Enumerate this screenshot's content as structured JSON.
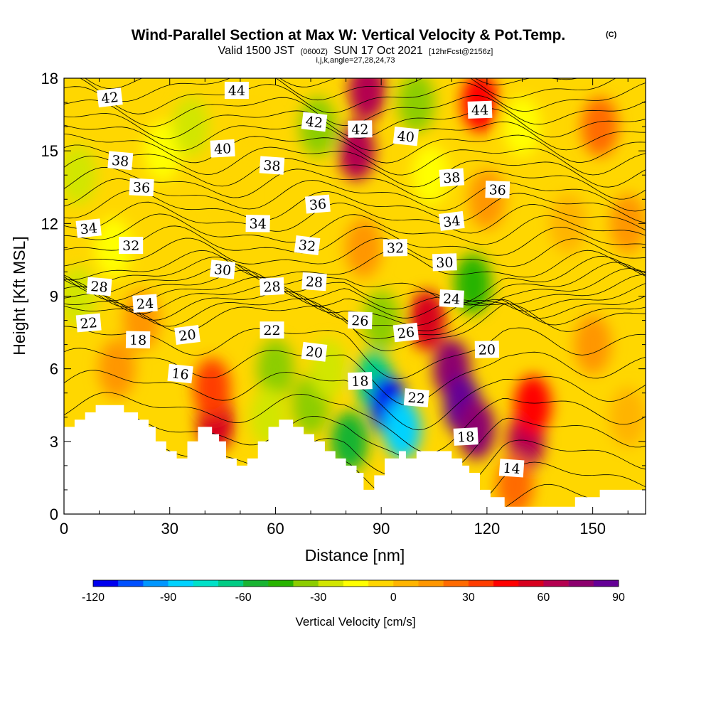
{
  "title": {
    "main": "Wind-Parallel Section at Max W: Vertical Velocity & Pot.Temp.",
    "copyright": "(C)",
    "sub_a": "Valid 1500 JST",
    "sub_zulu": "(0600Z)",
    "sub_b": "SUN 17 Oct 2021",
    "sub_fcst": "[12hrFcst@2156z]",
    "ijk": "i,j,k,angle=27,28,24,73"
  },
  "chart_data": {
    "type": "heatmap",
    "xlabel": "Distance [nm]",
    "ylabel": "Height [Kft MSL]",
    "xlim": [
      0,
      165
    ],
    "ylim": [
      0,
      18
    ],
    "xticks": [
      0,
      30,
      60,
      90,
      120,
      150
    ],
    "yticks": [
      0,
      3,
      6,
      9,
      12,
      15,
      18
    ],
    "colorbar": {
      "label": "Vertical Velocity [cm/s]",
      "range": [
        -120,
        90
      ],
      "step": 10,
      "ticks": [
        -120,
        -90,
        -60,
        -30,
        0,
        30,
        60,
        90
      ],
      "colors": [
        "#0000ee",
        "#0050ff",
        "#0096ff",
        "#00d2ff",
        "#00e1c8",
        "#00cc84",
        "#18b432",
        "#28b400",
        "#8ccd00",
        "#d2e600",
        "#ffff00",
        "#ffd500",
        "#ffb400",
        "#ff9600",
        "#ff6a00",
        "#ff3c00",
        "#ff0000",
        "#d7001e",
        "#b40050",
        "#8c006e",
        "#640096"
      ]
    },
    "terrain": [
      [
        0,
        3.6
      ],
      [
        3,
        3.6
      ],
      [
        3,
        3.9
      ],
      [
        6,
        3.9
      ],
      [
        6,
        4.2
      ],
      [
        9,
        4.2
      ],
      [
        9,
        4.5
      ],
      [
        17,
        4.5
      ],
      [
        17,
        4.2
      ],
      [
        21,
        4.2
      ],
      [
        21,
        3.9
      ],
      [
        24,
        3.9
      ],
      [
        24,
        3.6
      ],
      [
        26,
        3.6
      ],
      [
        26,
        3.0
      ],
      [
        29,
        3.0
      ],
      [
        29,
        2.6
      ],
      [
        32,
        2.6
      ],
      [
        32,
        2.3
      ],
      [
        35,
        2.3
      ],
      [
        35,
        3.0
      ],
      [
        38,
        3.0
      ],
      [
        38,
        3.6
      ],
      [
        42,
        3.6
      ],
      [
        42,
        3.3
      ],
      [
        44,
        3.3
      ],
      [
        44,
        3.0
      ],
      [
        46,
        3.0
      ],
      [
        46,
        2.3
      ],
      [
        49,
        2.3
      ],
      [
        49,
        2.0
      ],
      [
        52,
        2.0
      ],
      [
        52,
        2.3
      ],
      [
        55,
        2.3
      ],
      [
        55,
        3.0
      ],
      [
        58,
        3.0
      ],
      [
        58,
        3.6
      ],
      [
        61,
        3.6
      ],
      [
        61,
        3.9
      ],
      [
        65,
        3.9
      ],
      [
        65,
        3.6
      ],
      [
        68,
        3.6
      ],
      [
        68,
        3.3
      ],
      [
        71,
        3.3
      ],
      [
        71,
        3.0
      ],
      [
        74,
        3.0
      ],
      [
        74,
        2.6
      ],
      [
        77,
        2.6
      ],
      [
        77,
        2.3
      ],
      [
        80,
        2.3
      ],
      [
        80,
        2.0
      ],
      [
        83,
        2.0
      ],
      [
        83,
        1.7
      ],
      [
        85,
        1.7
      ],
      [
        85,
        1.0
      ],
      [
        88,
        1.0
      ],
      [
        88,
        1.6
      ],
      [
        91,
        1.6
      ],
      [
        91,
        2.3
      ],
      [
        95,
        2.3
      ],
      [
        95,
        2.6
      ],
      [
        97,
        2.6
      ],
      [
        97,
        2.3
      ],
      [
        100,
        2.3
      ],
      [
        100,
        2.6
      ],
      [
        103,
        2.6
      ],
      [
        103,
        2.6
      ],
      [
        110,
        2.6
      ],
      [
        110,
        2.3
      ],
      [
        113,
        2.3
      ],
      [
        113,
        2.0
      ],
      [
        115,
        2.0
      ],
      [
        115,
        1.7
      ],
      [
        118,
        1.7
      ],
      [
        118,
        1.0
      ],
      [
        121,
        1.0
      ],
      [
        121,
        0.7
      ],
      [
        125,
        0.7
      ],
      [
        125,
        0.3
      ],
      [
        145,
        0.3
      ],
      [
        145,
        0.7
      ],
      [
        152,
        0.7
      ],
      [
        152,
        1.0
      ],
      [
        165,
        1.0
      ]
    ],
    "w_field": [
      {
        "x": 4,
        "y": 9,
        "w": -30
      },
      {
        "x": 4,
        "y": 14,
        "w": -30
      },
      {
        "x": 14,
        "y": 11,
        "w": -20
      },
      {
        "x": 15,
        "y": 6,
        "w": 15
      },
      {
        "x": 22,
        "y": 8,
        "w": 10
      },
      {
        "x": 28,
        "y": 15,
        "w": -20
      },
      {
        "x": 36,
        "y": 16,
        "w": -30
      },
      {
        "x": 43,
        "y": 3.8,
        "w": 55
      },
      {
        "x": 42,
        "y": 5.2,
        "w": 35
      },
      {
        "x": 47,
        "y": 13,
        "w": -10
      },
      {
        "x": 53,
        "y": 16,
        "w": -10
      },
      {
        "x": 60,
        "y": 6,
        "w": -40
      },
      {
        "x": 58,
        "y": 4,
        "w": -30
      },
      {
        "x": 70,
        "y": 4.5,
        "w": -40
      },
      {
        "x": 72,
        "y": 16,
        "w": -35
      },
      {
        "x": 75,
        "y": 6,
        "w": -30
      },
      {
        "x": 83,
        "y": 15,
        "w": 60
      },
      {
        "x": 86,
        "y": 17.5,
        "w": 65
      },
      {
        "x": 85,
        "y": 11,
        "w": 15
      },
      {
        "x": 81,
        "y": 3,
        "w": -60
      },
      {
        "x": 88,
        "y": 5.5,
        "w": -70
      },
      {
        "x": 92,
        "y": 4.5,
        "w": -115
      },
      {
        "x": 96,
        "y": 3.5,
        "w": -90
      },
      {
        "x": 90,
        "y": 8,
        "w": -40
      },
      {
        "x": 100,
        "y": 17,
        "w": -40
      },
      {
        "x": 104,
        "y": 14,
        "w": -20
      },
      {
        "x": 103,
        "y": 8,
        "w": 55
      },
      {
        "x": 110,
        "y": 6,
        "w": 70
      },
      {
        "x": 113,
        "y": 4.5,
        "w": 90
      },
      {
        "x": 117,
        "y": 3.5,
        "w": 70
      },
      {
        "x": 116,
        "y": 9.5,
        "w": -50
      },
      {
        "x": 120,
        "y": 13,
        "w": 10
      },
      {
        "x": 118,
        "y": 17,
        "w": 40
      },
      {
        "x": 130,
        "y": 16,
        "w": -20
      },
      {
        "x": 131,
        "y": 3,
        "w": 65
      },
      {
        "x": 133,
        "y": 4.5,
        "w": 40
      },
      {
        "x": 143,
        "y": 12,
        "w": 5
      },
      {
        "x": 150,
        "y": 7,
        "w": 15
      },
      {
        "x": 152,
        "y": 16,
        "w": 20
      },
      {
        "x": 160,
        "y": 4,
        "w": 0
      },
      {
        "x": 160,
        "y": 12,
        "w": 10
      },
      {
        "x": 128,
        "y": 1.2,
        "w": 20
      }
    ],
    "theta_contours": {
      "unit": "C",
      "interval": 1,
      "labels": [
        {
          "value": "42",
          "x": 13,
          "y": 17.2
        },
        {
          "value": "44",
          "x": 49,
          "y": 17.5
        },
        {
          "value": "42",
          "x": 71,
          "y": 16.2
        },
        {
          "value": "42",
          "x": 84,
          "y": 15.9
        },
        {
          "value": "40",
          "x": 97,
          "y": 15.6
        },
        {
          "value": "44",
          "x": 118,
          "y": 16.7
        },
        {
          "value": "38",
          "x": 16,
          "y": 14.6
        },
        {
          "value": "40",
          "x": 45,
          "y": 15.1
        },
        {
          "value": "38",
          "x": 59,
          "y": 14.4
        },
        {
          "value": "38",
          "x": 110,
          "y": 13.9
        },
        {
          "value": "36",
          "x": 22,
          "y": 13.5
        },
        {
          "value": "36",
          "x": 72,
          "y": 12.8
        },
        {
          "value": "36",
          "x": 123,
          "y": 13.4
        },
        {
          "value": "34",
          "x": 7,
          "y": 11.8
        },
        {
          "value": "34",
          "x": 55,
          "y": 12.0
        },
        {
          "value": "34",
          "x": 110,
          "y": 12.1
        },
        {
          "value": "32",
          "x": 19,
          "y": 11.1
        },
        {
          "value": "32",
          "x": 69,
          "y": 11.1
        },
        {
          "value": "32",
          "x": 94,
          "y": 11.0
        },
        {
          "value": "30",
          "x": 45,
          "y": 10.1
        },
        {
          "value": "30",
          "x": 108,
          "y": 10.4
        },
        {
          "value": "28",
          "x": 10,
          "y": 9.4
        },
        {
          "value": "28",
          "x": 59,
          "y": 9.4
        },
        {
          "value": "28",
          "x": 71,
          "y": 9.6
        },
        {
          "value": "24",
          "x": 23,
          "y": 8.7
        },
        {
          "value": "24",
          "x": 110,
          "y": 8.9
        },
        {
          "value": "22",
          "x": 7,
          "y": 7.9
        },
        {
          "value": "26",
          "x": 84,
          "y": 8.0
        },
        {
          "value": "26",
          "x": 97,
          "y": 7.5
        },
        {
          "value": "18",
          "x": 21,
          "y": 7.2
        },
        {
          "value": "20",
          "x": 35,
          "y": 7.4
        },
        {
          "value": "22",
          "x": 59,
          "y": 7.6
        },
        {
          "value": "20",
          "x": 71,
          "y": 6.7
        },
        {
          "value": "20",
          "x": 120,
          "y": 6.8
        },
        {
          "value": "16",
          "x": 33,
          "y": 5.8
        },
        {
          "value": "18",
          "x": 84,
          "y": 5.5
        },
        {
          "value": "22",
          "x": 100,
          "y": 4.8
        },
        {
          "value": "18",
          "x": 114,
          "y": 3.2
        },
        {
          "value": "14",
          "x": 127,
          "y": 1.9
        }
      ]
    }
  }
}
